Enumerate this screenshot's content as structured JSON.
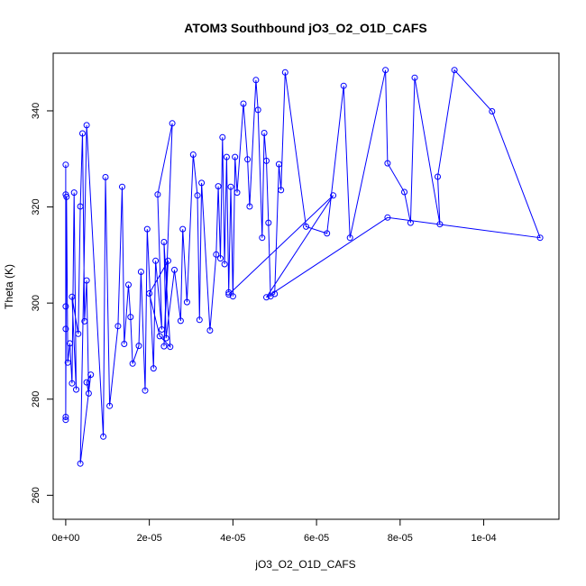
{
  "chart_data": {
    "type": "line",
    "title": "ATOM3 Southbound jO3_O2_O1D_CAFS",
    "xlabel": "jO3_O2_O1D_CAFS",
    "ylabel": "Theta (K)",
    "xlim": [
      -3e-06,
      0.000118
    ],
    "ylim": [
      255,
      352
    ],
    "x_ticks": [
      0,
      2e-05,
      4e-05,
      6e-05,
      8e-05,
      0.0001
    ],
    "x_tick_labels": [
      "0e+00",
      "2e-05",
      "4e-05",
      "6e-05",
      "8e-05",
      "1e-04"
    ],
    "y_ticks": [
      260,
      280,
      300,
      320,
      340
    ],
    "y_tick_labels": [
      "260",
      "280",
      "300",
      "320",
      "340"
    ],
    "grid": false,
    "color": "#0000ff",
    "series": [
      {
        "x": [
          0,
          0,
          0,
          0,
          0,
          0,
          2e-07,
          5e-07,
          1e-06,
          1.5e-06,
          2e-06,
          2.5e-06,
          1.5e-06,
          3e-06,
          3.5e-06,
          4e-06,
          4.5e-06,
          5e-06,
          5.5e-06,
          5e-06,
          6e-06,
          3.5e-06,
          5e-06,
          9e-06,
          9.5e-06,
          1.05e-05,
          1.25e-05,
          1.35e-05,
          1.4e-05,
          1.5e-05,
          1.55e-05,
          1.6e-05,
          1.75e-05,
          1.8e-05,
          1.9e-05,
          1.95e-05,
          2.1e-05,
          2.15e-05,
          2.3e-05,
          2.2e-05,
          2.55e-05,
          2.35e-05,
          2.45e-05,
          2e-05,
          2.25e-05,
          2.5e-05,
          2.35e-05,
          2.4e-05,
          2.6e-05,
          2.75e-05,
          2.8e-05,
          2.9e-05,
          3.05e-05,
          3.15e-05,
          3.2e-05,
          3.25e-05,
          3.45e-05,
          3.6e-05,
          3.65e-05,
          3.7e-05,
          3.75e-05,
          3.8e-05,
          3.85e-05,
          3.9e-05,
          3.95e-05,
          4e-05,
          4.05e-05,
          4.1e-05,
          4.25e-05,
          4.35e-05,
          4.4e-05,
          4.55e-05,
          4.6e-05,
          4.7e-05,
          4.75e-05,
          4.8e-05,
          4.85e-05,
          4.9e-05,
          5e-05,
          5.1e-05,
          5.15e-05,
          5.25e-05,
          5.75e-05,
          6.25e-05,
          6.65e-05,
          6.8e-05,
          7.65e-05,
          7.7e-05,
          8.1e-05,
          8.25e-05,
          8.35e-05,
          8.95e-05,
          8.9e-05,
          9.3e-05,
          0.000102,
          0.0001135,
          7.7e-05,
          4.8e-05,
          6.4e-05,
          3.9e-05
        ],
        "y": [
          328.8,
          322.6,
          299.3,
          294.6,
          275.7,
          276.3,
          322.1,
          287.6,
          291.6,
          283.3,
          323.0,
          282.0,
          301.3,
          293.6,
          320.1,
          335.3,
          296.2,
          304.7,
          281.2,
          283.5,
          285.1,
          266.6,
          337.0,
          272.2,
          326.2,
          278.6,
          295.2,
          324.2,
          291.5,
          303.8,
          297.1,
          287.4,
          291.1,
          306.5,
          281.8,
          315.4,
          286.4,
          308.8,
          294.5,
          322.6,
          337.4,
          291.0,
          308.8,
          302.0,
          293.1,
          290.9,
          312.7,
          292.7,
          306.9,
          296.3,
          315.4,
          300.2,
          330.9,
          322.4,
          296.5,
          325.0,
          294.3,
          310.1,
          324.3,
          309.3,
          334.5,
          308.1,
          330.4,
          302.2,
          324.2,
          301.4,
          330.4,
          323.0,
          341.5,
          329.9,
          320.1,
          346.4,
          340.2,
          313.6,
          335.4,
          329.6,
          316.7,
          301.4,
          301.9,
          328.9,
          323.5,
          348.0,
          315.9,
          314.5,
          345.2,
          313.6,
          348.5,
          329.1,
          323.1,
          316.7,
          346.9,
          316.4,
          326.3,
          348.5,
          339.9,
          313.6,
          317.8,
          301.2,
          322.4,
          301.8
        ]
      }
    ]
  }
}
